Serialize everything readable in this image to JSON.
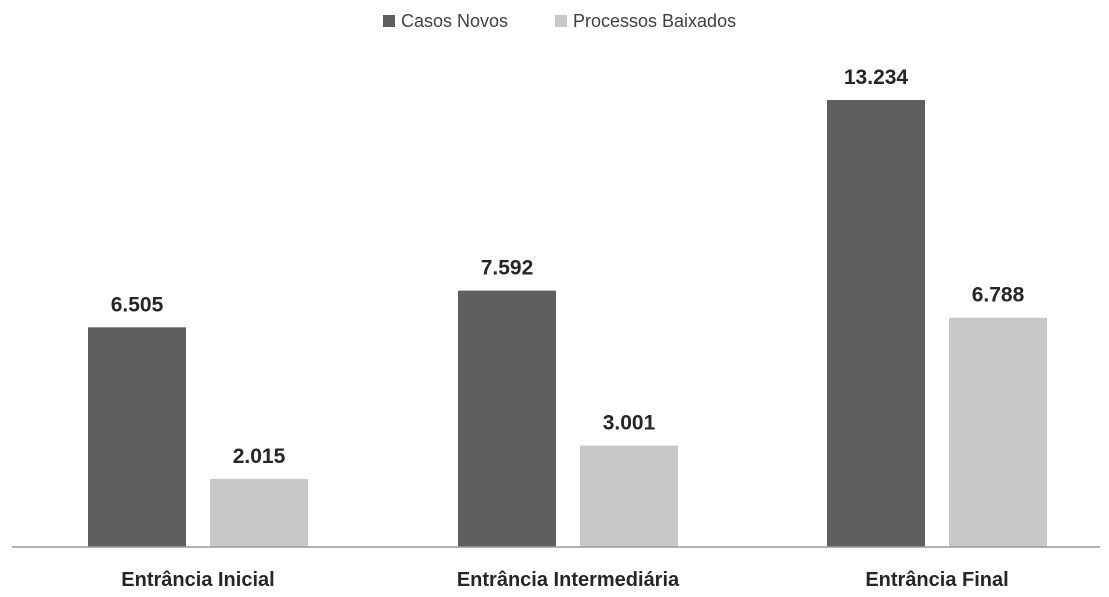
{
  "chart_data": {
    "type": "bar",
    "title": "",
    "xlabel": "",
    "ylabel": "",
    "categories": [
      "Entrância Inicial",
      "Entrância Intermediária",
      "Entrância Final"
    ],
    "series": [
      {
        "name": "Casos Novos",
        "color": "#5f5f5f",
        "values": [
          6505,
          7592,
          13234
        ],
        "labels": [
          "6.505",
          "7.592",
          "13.234"
        ]
      },
      {
        "name": "Processos Baixados",
        "color": "#c8c8c8",
        "values": [
          2015,
          3001,
          6788
        ],
        "labels": [
          "2.015",
          "3.001",
          "6.788"
        ]
      }
    ],
    "ylim": [
      0,
      14000
    ],
    "grid": false,
    "legend_position": "top-center"
  }
}
